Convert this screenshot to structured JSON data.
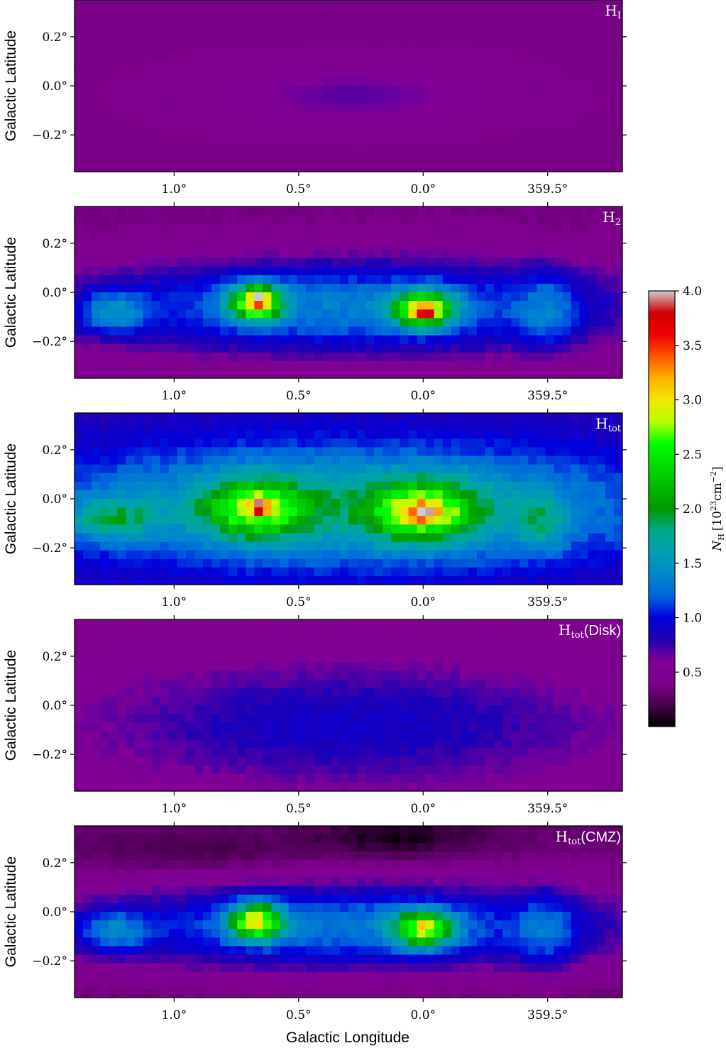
{
  "chart_data": {
    "type": "heatmap",
    "colormap": "nipy_spectral",
    "xlabel": "Galactic Longitude",
    "ylabel": "Galactic Latitude",
    "x_ticks": [
      "1.0°",
      "0.5°",
      "0.0°",
      "359.5°"
    ],
    "x_tick_values": [
      1.0,
      0.5,
      0.0,
      -0.5
    ],
    "y_ticks": [
      "0.2°",
      "0.0°",
      "−0.2°"
    ],
    "y_tick_values": [
      0.2,
      0.0,
      -0.2
    ],
    "xlim": [
      1.4,
      -0.8
    ],
    "ylim": [
      -0.35,
      0.35
    ],
    "colorbar": {
      "label_main": "N",
      "label_sub": "H",
      "label_units": "[10",
      "label_exp": "23",
      "label_units2": "cm",
      "label_exp2": "−2",
      "label_close": "]",
      "range": [
        0.0,
        4.0
      ],
      "ticks": [
        "0.5",
        "1.0",
        "1.5",
        "2.0",
        "2.5",
        "3.0",
        "3.5",
        "4.0"
      ],
      "tick_values": [
        0.5,
        1.0,
        1.5,
        2.0,
        2.5,
        3.0,
        3.5,
        4.0
      ]
    },
    "panels": [
      {
        "id": "hi",
        "label_main": "H",
        "label_sub": "I",
        "label_suffix": "",
        "background": 0.38,
        "features": [
          {
            "l": 0.28,
            "b": -0.04,
            "sl": 0.42,
            "sb": 0.09,
            "amp": 0.3
          }
        ]
      },
      {
        "id": "h2",
        "label_main": "H",
        "label_sub": "2",
        "label_suffix": "",
        "background": 0.35,
        "features": [
          {
            "l": 0.3,
            "b": -0.06,
            "sl": 0.85,
            "sb": 0.14,
            "amp": 1.0
          },
          {
            "l": 0.67,
            "b": -0.04,
            "sl": 0.07,
            "sb": 0.05,
            "amp": 2.1
          },
          {
            "l": 0.0,
            "b": -0.07,
            "sl": 0.08,
            "sb": 0.05,
            "amp": 2.0
          },
          {
            "l": 0.66,
            "b": -0.03,
            "sl": 0.015,
            "sb": 0.015,
            "amp": 1.2
          },
          {
            "l": -0.02,
            "b": -0.08,
            "sl": 0.02,
            "sb": 0.015,
            "amp": 1.0
          },
          {
            "l": 1.25,
            "b": -0.08,
            "sl": 0.1,
            "sb": 0.06,
            "amp": 0.6
          },
          {
            "l": -0.5,
            "b": -0.08,
            "sl": 0.08,
            "sb": 0.12,
            "amp": 0.4
          }
        ]
      },
      {
        "id": "htot",
        "label_main": "H",
        "label_sub": "tot",
        "label_suffix": "",
        "background": 0.75,
        "features": [
          {
            "l": 0.3,
            "b": -0.03,
            "sl": 0.9,
            "sb": 0.18,
            "amp": 0.95
          },
          {
            "l": 0.67,
            "b": -0.04,
            "sl": 0.14,
            "sb": 0.08,
            "amp": 1.4
          },
          {
            "l": 0.0,
            "b": -0.05,
            "sl": 0.15,
            "sb": 0.08,
            "amp": 1.5
          },
          {
            "l": 0.66,
            "b": -0.03,
            "sl": 0.02,
            "sb": 0.02,
            "amp": 1.1
          },
          {
            "l": -0.01,
            "b": -0.06,
            "sl": 0.03,
            "sb": 0.02,
            "amp": 1.1
          },
          {
            "l": 1.25,
            "b": -0.08,
            "sl": 0.12,
            "sb": 0.06,
            "amp": 0.7
          },
          {
            "l": -0.48,
            "b": -0.1,
            "sl": 0.07,
            "sb": 0.08,
            "amp": 0.5
          }
        ]
      },
      {
        "id": "disk",
        "label_main": "H",
        "label_sub": "tot",
        "label_suffix": "(Disk)",
        "background": 0.45,
        "features": [
          {
            "l": 0.3,
            "b": -0.08,
            "sl": 0.75,
            "sb": 0.18,
            "amp": 0.45
          }
        ]
      },
      {
        "id": "cmz",
        "label_main": "H",
        "label_sub": "tot",
        "label_suffix": "(CMZ)",
        "background": 0.3,
        "features": [
          {
            "l": 0.3,
            "b": -0.06,
            "sl": 0.85,
            "sb": 0.13,
            "amp": 1.0
          },
          {
            "l": 0.67,
            "b": -0.04,
            "sl": 0.07,
            "sb": 0.05,
            "amp": 2.0
          },
          {
            "l": 0.0,
            "b": -0.07,
            "sl": 0.08,
            "sb": 0.05,
            "amp": 1.8
          },
          {
            "l": 1.25,
            "b": -0.08,
            "sl": 0.1,
            "sb": 0.06,
            "amp": 0.6
          },
          {
            "l": -0.5,
            "b": -0.08,
            "sl": 0.08,
            "sb": 0.12,
            "amp": 0.4
          },
          {
            "l": 0.1,
            "b": 0.3,
            "sl": 0.25,
            "sb": 0.06,
            "amp": -0.25
          },
          {
            "l": 0.9,
            "b": 0.24,
            "sl": 0.3,
            "sb": 0.06,
            "amp": -0.15
          }
        ]
      }
    ]
  }
}
